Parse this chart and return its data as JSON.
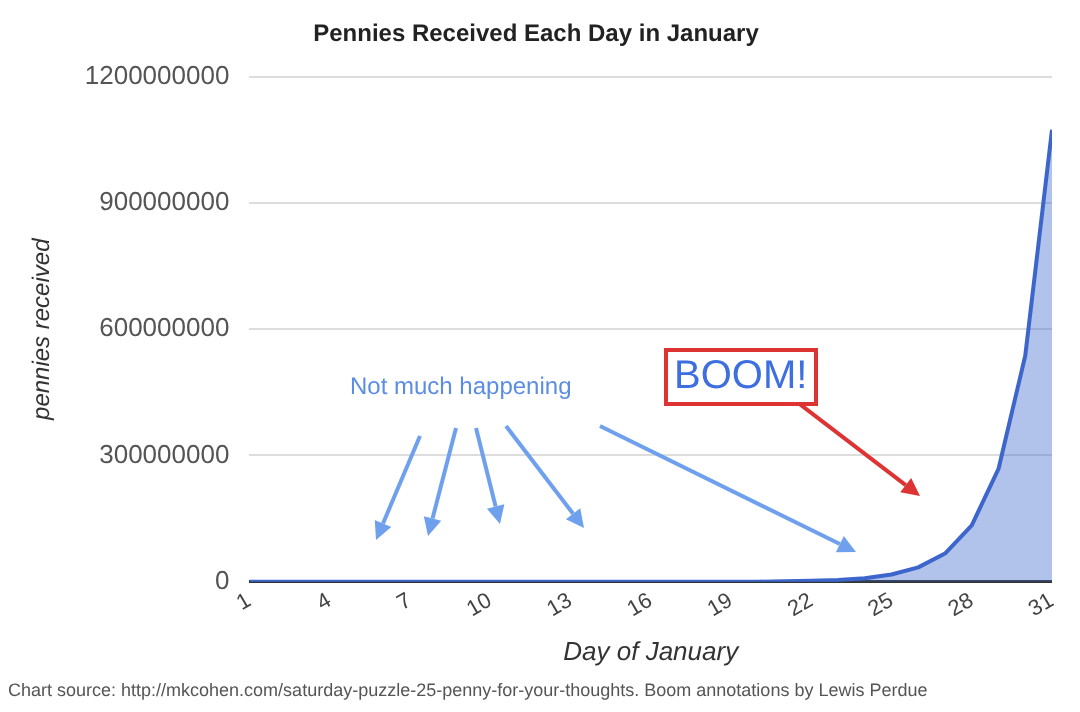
{
  "chart_data": {
    "type": "area",
    "title": "Pennies Received Each Day in January",
    "xlabel": "Day of January",
    "ylabel": "pennies received",
    "x": [
      1,
      2,
      3,
      4,
      5,
      6,
      7,
      8,
      9,
      10,
      11,
      12,
      13,
      14,
      15,
      16,
      17,
      18,
      19,
      20,
      21,
      22,
      23,
      24,
      25,
      26,
      27,
      28,
      29,
      30,
      31
    ],
    "series": [
      {
        "color": "#3d66cc",
        "values": [
          0,
          0,
          0,
          0,
          0,
          0,
          0,
          0,
          0,
          0,
          0,
          0,
          0,
          0,
          0,
          0,
          0,
          0,
          0,
          0,
          1000000,
          2000000,
          4000000,
          8000000,
          17000000,
          34000000,
          67000000,
          134000000,
          268000000,
          537000000,
          1074000000
        ]
      }
    ],
    "xlim": [
      1,
      31
    ],
    "xticks": [
      1,
      4,
      7,
      10,
      13,
      16,
      19,
      22,
      25,
      28,
      31
    ],
    "ylim": [
      0,
      1200000000
    ],
    "yticks": [
      0,
      300000000,
      600000000,
      900000000,
      1200000000
    ],
    "grid": "y",
    "legend": false,
    "marker": "none",
    "annotations": [
      "Not much happening",
      "BOOM!",
      "Chart source: http://mkcohen.com/saturday-puzzle-25-penny-for-your-thoughts. Boom annotations by Lewis Perdue"
    ]
  }
}
